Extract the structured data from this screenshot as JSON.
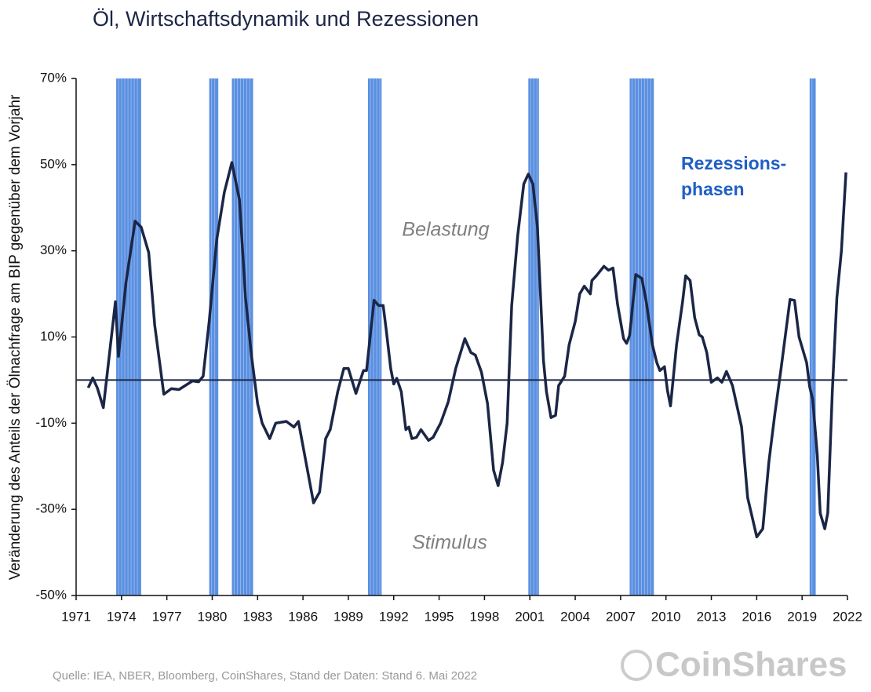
{
  "chart_data": {
    "type": "line",
    "title": "Öl, Wirtschaftsdynamik und Rezessionen",
    "y_label": "Veränderung des Anteils der Ölnachfrage am BIP gegenüber dem Vorjahr",
    "annotations": [
      "Belastung",
      "Stimulus"
    ],
    "recession_label": [
      "Rezessions-",
      "phasen"
    ],
    "source": "Quelle: IEA, NBER, Bloomberg, CoinShares, Stand der Daten: Stand 6. Mai 2022",
    "brand": "CoinShares",
    "color": "#1b2646",
    "recession_color": "#5b8fe0",
    "xlim": [
      1971,
      2022
    ],
    "ylim": [
      -50,
      70
    ],
    "xticks": [
      1971,
      1974,
      1977,
      1980,
      1983,
      1986,
      1989,
      1992,
      1995,
      1998,
      2001,
      2004,
      2007,
      2010,
      2013,
      2016,
      2019,
      2022
    ],
    "yticks": [
      {
        "value": -50,
        "label": "-50%"
      },
      {
        "value": -30,
        "label": "-30%"
      },
      {
        "value": -10,
        "label": "-10%"
      },
      {
        "value": 10,
        "label": "10%"
      },
      {
        "value": 30,
        "label": "30%"
      },
      {
        "value": 50,
        "label": "50%"
      },
      {
        "value": 70,
        "label": "70%"
      }
    ],
    "recessions": [
      [
        1973.65,
        1975.3
      ],
      [
        1979.8,
        1980.4
      ],
      [
        1981.3,
        1982.7
      ],
      [
        1990.3,
        1991.2
      ],
      [
        2000.9,
        2001.6
      ],
      [
        2007.6,
        2009.2
      ],
      [
        2019.5,
        2019.9
      ]
    ],
    "x": [
      1971.8,
      1972.1,
      1972.4,
      1972.8,
      1973.6,
      1973.8,
      1974.3,
      1974.9,
      1975.3,
      1975.8,
      1976.2,
      1976.8,
      1977.3,
      1977.8,
      1978.7,
      1979.1,
      1979.4,
      1979.8,
      1980.3,
      1980.8,
      1981.3,
      1981.8,
      1982.2,
      1982.6,
      1983.0,
      1983.3,
      1983.8,
      1984.2,
      1984.9,
      1985.4,
      1985.7,
      1986.2,
      1986.7,
      1987.1,
      1987.5,
      1987.8,
      1988.3,
      1988.7,
      1989.0,
      1989.5,
      1990.0,
      1990.2,
      1990.7,
      1991.0,
      1991.3,
      1991.5,
      1991.8,
      1992.0,
      1992.2,
      1992.5,
      1992.8,
      1993.0,
      1993.2,
      1993.5,
      1993.8,
      1994.3,
      1994.6,
      1995.1,
      1995.6,
      1996.1,
      1996.7,
      1997.1,
      1997.4,
      1997.8,
      1998.2,
      1998.6,
      1998.9,
      1999.2,
      1999.5,
      1999.8,
      2000.2,
      2000.6,
      2000.9,
      2001.2,
      2001.5,
      2001.9,
      2002.1,
      2002.4,
      2002.7,
      2002.9,
      2003.3,
      2003.6,
      2004.0,
      2004.3,
      2004.6,
      2005.0,
      2005.1,
      2005.4,
      2005.9,
      2006.2,
      2006.5,
      2006.8,
      2007.2,
      2007.4,
      2007.6,
      2008.0,
      2008.4,
      2008.7,
      2009.1,
      2009.4,
      2009.6,
      2009.9,
      2010.1,
      2010.3,
      2010.7,
      2011.1,
      2011.3,
      2011.6,
      2011.9,
      2012.2,
      2012.4,
      2012.7,
      2013.0,
      2013.4,
      2013.7,
      2014.0,
      2014.4,
      2015.0,
      2015.4,
      2015.7,
      2016.0,
      2016.4,
      2016.8,
      2017.2,
      2017.6,
      2018.2,
      2018.5,
      2018.8,
      2019.3,
      2019.5,
      2019.7,
      2020.0,
      2020.2,
      2020.5,
      2020.7,
      2021.0,
      2021.3,
      2021.6,
      2021.9
    ],
    "values": [
      -1.8,
      0.5,
      -1.8,
      -6.4,
      18.2,
      5.5,
      22.7,
      36.9,
      35.5,
      29.6,
      12.7,
      -3.3,
      -2,
      -2.2,
      -0.2,
      -0.4,
      0.9,
      13.6,
      32.7,
      43.6,
      50.5,
      41.8,
      19.1,
      5.5,
      -5.5,
      -10,
      -13.6,
      -10,
      -9.6,
      -10.9,
      -9.6,
      -19.1,
      -28.5,
      -26,
      -13.6,
      -11.5,
      -2.7,
      2.7,
      2.7,
      -3.1,
      2.2,
      2.2,
      18.5,
      17.3,
      17.3,
      11.8,
      2.7,
      -0.9,
      0.4,
      -2.7,
      -11.5,
      -10.9,
      -13.6,
      -13.3,
      -11.5,
      -14,
      -13.3,
      -10,
      -5.1,
      2.7,
      9.6,
      6.4,
      5.8,
      1.8,
      -5.5,
      -20.9,
      -24.5,
      -19.1,
      -10,
      17.3,
      33.6,
      45.5,
      47.8,
      45.5,
      35.5,
      4.5,
      -2.7,
      -8.7,
      -8.2,
      -1.3,
      0.9,
      8.2,
      13.6,
      20,
      21.8,
      20,
      23.1,
      24.2,
      26.4,
      25.5,
      26,
      17.6,
      9.6,
      8.5,
      10.4,
      24.5,
      23.6,
      18.2,
      8.2,
      4,
      2.2,
      3.1,
      -2.4,
      -6,
      8.2,
      18.2,
      24.2,
      23.1,
      14.5,
      10.5,
      10,
      6.4,
      -0.5,
      0.5,
      -0.5,
      2,
      -1.3,
      -10.9,
      -27.3,
      -31.8,
      -36.4,
      -34.5,
      -19.1,
      -7.8,
      2.4,
      18.7,
      18.5,
      10,
      4,
      -1.5,
      -4.5,
      -17.3,
      -30.9,
      -34.5,
      -30.9,
      -2.7,
      19.1,
      30,
      48.2
    ]
  }
}
